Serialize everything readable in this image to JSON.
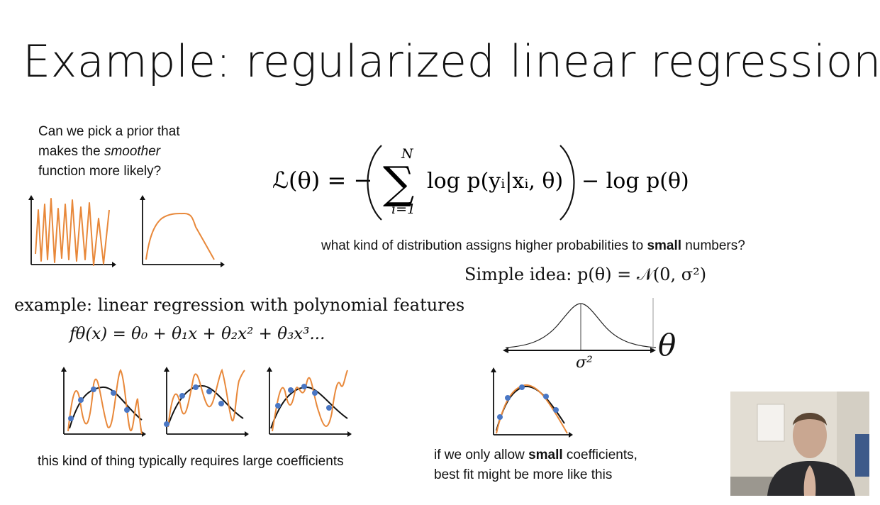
{
  "title": "Example: regularized linear regression",
  "prior_question": {
    "line1": "Can we pick a prior that",
    "line2_pre": "makes the ",
    "line2_em": "smoother",
    "line3": "function more likely?"
  },
  "loss": {
    "lhs": "ℒ(θ) = −",
    "sum_top": "N",
    "sum_bottom": "i=1",
    "term": "log p(yᵢ|xᵢ, θ)",
    "tail": "− log p(θ)"
  },
  "question": {
    "pre": "what kind of distribution assigns higher probabilities to ",
    "bold": "small",
    "post": " numbers?"
  },
  "simple_idea": "Simple idea:  p(θ) = 𝒩(0, σ²)",
  "gaussian": {
    "theta_label": "θ",
    "sigma_label": "σ²"
  },
  "example": {
    "heading": "example:  linear regression with polynomial features",
    "formula": "fθ(x) = θ₀ + θ₁x + θ₂x² + θ₃x³..."
  },
  "caption_large": "this kind of thing typically requires large coefficients",
  "caption_small": {
    "line1_pre": "if we only allow ",
    "line1_bold": "small",
    "line1_post": " coefficients,",
    "line2": "best fit might be more like this"
  },
  "colors": {
    "orange": "#e8883a",
    "point_blue": "#4a77c4",
    "axis": "#111111"
  }
}
